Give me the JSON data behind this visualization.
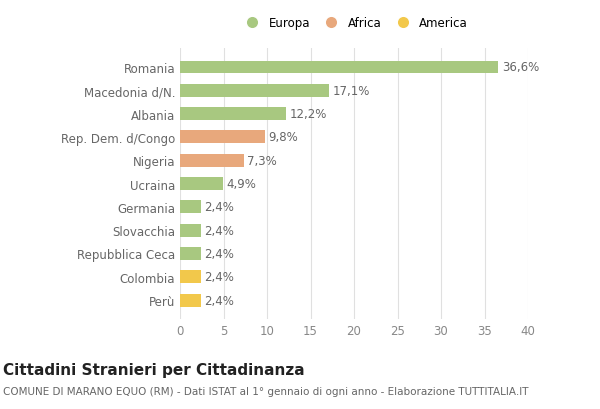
{
  "categories": [
    "Perù",
    "Colombia",
    "Repubblica Ceca",
    "Slovacchia",
    "Germania",
    "Ucraina",
    "Nigeria",
    "Rep. Dem. d/Congo",
    "Albania",
    "Macedonia d/N.",
    "Romania"
  ],
  "values": [
    2.4,
    2.4,
    2.4,
    2.4,
    2.4,
    4.9,
    7.3,
    9.8,
    12.2,
    17.1,
    36.6
  ],
  "labels": [
    "2,4%",
    "2,4%",
    "2,4%",
    "2,4%",
    "2,4%",
    "4,9%",
    "7,3%",
    "9,8%",
    "12,2%",
    "17,1%",
    "36,6%"
  ],
  "colors": [
    "#f2c84b",
    "#f2c84b",
    "#a8c880",
    "#a8c880",
    "#a8c880",
    "#a8c880",
    "#e8a87c",
    "#e8a87c",
    "#a8c880",
    "#a8c880",
    "#a8c880"
  ],
  "legend_labels": [
    "Europa",
    "Africa",
    "America"
  ],
  "legend_colors": [
    "#a8c880",
    "#e8a87c",
    "#f2c84b"
  ],
  "title": "Cittadini Stranieri per Cittadinanza",
  "subtitle": "COMUNE DI MARANO EQUO (RM) - Dati ISTAT al 1° gennaio di ogni anno - Elaborazione TUTTITALIA.IT",
  "xlim": [
    0,
    40
  ],
  "xticks": [
    0,
    5,
    10,
    15,
    20,
    25,
    30,
    35,
    40
  ],
  "background_color": "#ffffff",
  "grid_color": "#e0e0e0",
  "bar_height": 0.55,
  "label_fontsize": 8.5,
  "tick_fontsize": 8.5,
  "title_fontsize": 11,
  "subtitle_fontsize": 7.5
}
